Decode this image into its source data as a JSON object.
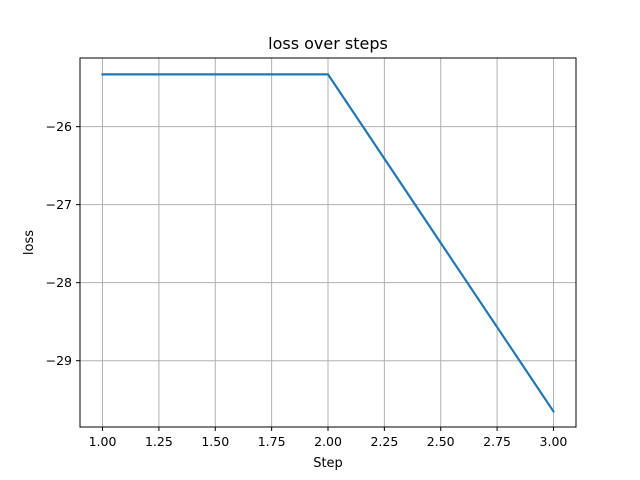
{
  "chart_data": {
    "type": "line",
    "title": "loss over steps",
    "xlabel": "Step",
    "ylabel": "loss",
    "x": [
      1.0,
      2.0,
      3.0
    ],
    "series": [
      {
        "values": [
          -25.33,
          -25.33,
          -29.65
        ],
        "color": "#1f77b4"
      }
    ],
    "xlim": [
      0.9,
      3.1
    ],
    "ylim": [
      -29.85,
      -25.12
    ],
    "x_ticks": [
      1.0,
      1.25,
      1.5,
      1.75,
      2.0,
      2.25,
      2.5,
      2.75,
      3.0
    ],
    "x_tick_labels": [
      "1.00",
      "1.25",
      "1.50",
      "1.75",
      "2.00",
      "2.25",
      "2.50",
      "2.75",
      "3.00"
    ],
    "y_ticks": [
      -26,
      -27,
      -28,
      -29
    ],
    "y_tick_labels": [
      "−26",
      "−27",
      "−28",
      "−29"
    ],
    "grid": true,
    "legend": "none"
  }
}
